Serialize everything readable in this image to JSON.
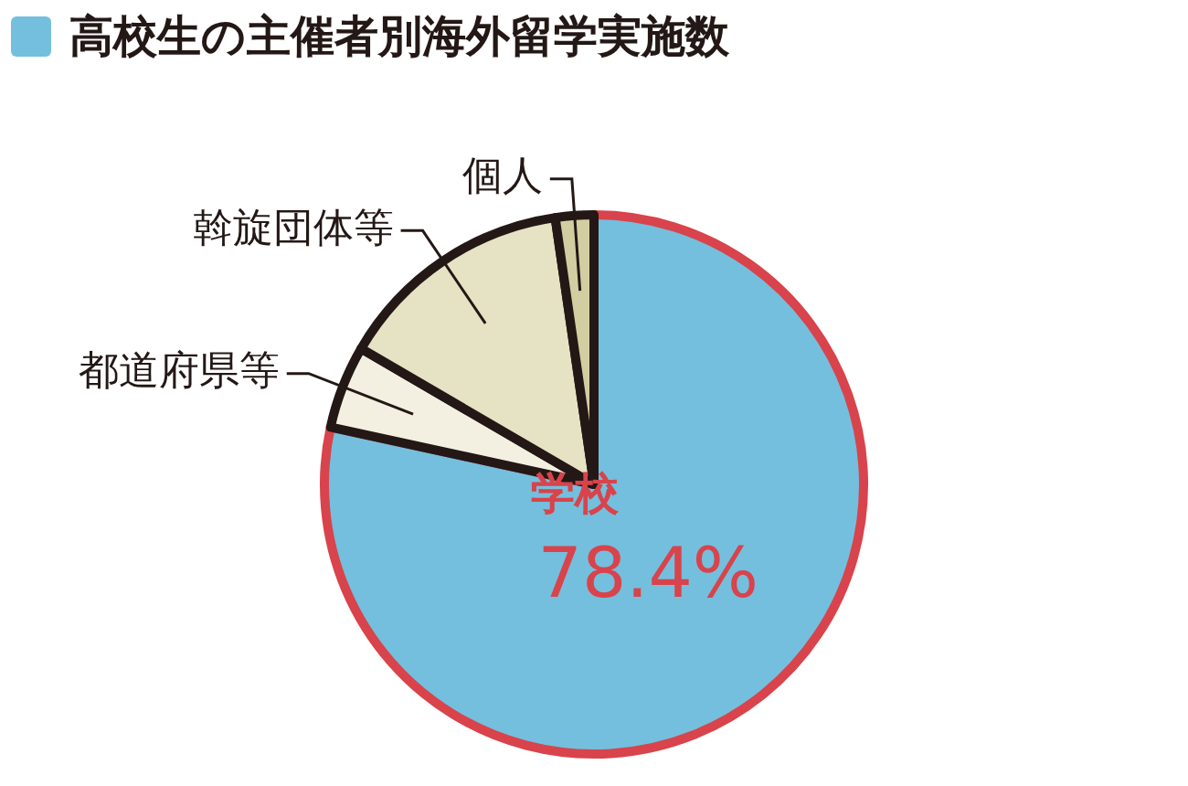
{
  "chart_data": {
    "type": "pie",
    "title": "高校生の主催者別海外留学実施数",
    "categories": [
      "学校",
      "都道府県等",
      "斡旋団体等",
      "個人"
    ],
    "values": [
      78.4,
      5.0,
      14.3,
      2.3
    ],
    "colors": [
      "#74bfdd",
      "#f3f0e2",
      "#e6e2c4",
      "#d3cda2"
    ],
    "value_labels": [
      "78.4%",
      null,
      null,
      null
    ],
    "legend": false
  }
}
